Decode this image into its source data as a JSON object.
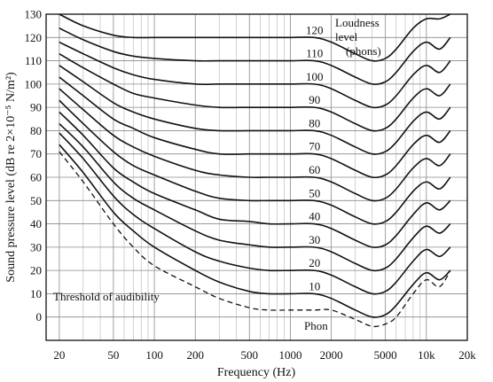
{
  "chart_data": {
    "type": "line",
    "xlabel": "Frequency (Hz)",
    "ylabel": "Sound pressure level (dB re 2×10⁻⁵ N/m²)",
    "xscale": "log",
    "xlim": [
      16,
      20000
    ],
    "ylim": [
      -10,
      130
    ],
    "xticks": [
      20,
      50,
      100,
      200,
      500,
      1000,
      2000,
      5000,
      10000,
      20000
    ],
    "xtick_labels": [
      "20",
      "50",
      "100",
      "200",
      "500",
      "1000",
      "2000",
      "5000",
      "10k",
      "20k"
    ],
    "yticks": [
      0,
      10,
      20,
      30,
      40,
      50,
      60,
      70,
      80,
      90,
      100,
      110,
      120,
      130
    ],
    "grid": true,
    "x": [
      20,
      30,
      50,
      70,
      100,
      200,
      300,
      500,
      700,
      1000,
      1500,
      2000,
      3000,
      4000,
      5000,
      6000,
      8000,
      10000,
      12500,
      15000
    ],
    "series": [
      {
        "name": "10",
        "values": [
          74,
          62,
          45,
          37,
          30,
          20,
          15,
          11,
          10,
          10,
          10,
          8,
          3,
          0,
          1,
          5,
          14,
          19,
          16,
          20
        ]
      },
      {
        "name": "20",
        "values": [
          79,
          68,
          52,
          44,
          38,
          28,
          24,
          21,
          20,
          20,
          20,
          18,
          13,
          10,
          11,
          15,
          24,
          29,
          26,
          30
        ]
      },
      {
        "name": "30",
        "values": [
          83,
          73,
          58,
          51,
          46,
          37,
          33,
          31,
          30,
          30,
          30,
          28,
          23,
          20,
          21,
          25,
          34,
          39,
          36,
          40
        ]
      },
      {
        "name": "40",
        "values": [
          88,
          78,
          64,
          58,
          53,
          46,
          42,
          41,
          40,
          40,
          40,
          38,
          33,
          30,
          31,
          35,
          44,
          49,
          46,
          50
        ]
      },
      {
        "name": "50",
        "values": [
          93,
          83,
          71,
          65,
          61,
          54,
          51,
          50,
          50,
          50,
          50,
          48,
          43,
          40,
          41,
          45,
          54,
          58,
          55,
          60
        ]
      },
      {
        "name": "60",
        "values": [
          98,
          89,
          78,
          73,
          69,
          63,
          61,
          60,
          60,
          60,
          60,
          58,
          53,
          50,
          51,
          55,
          64,
          68,
          65,
          70
        ]
      },
      {
        "name": "70",
        "values": [
          103,
          95,
          85,
          81,
          77,
          72,
          70,
          70,
          70,
          70,
          70,
          68,
          63,
          60,
          61,
          65,
          74,
          78,
          75,
          80
        ]
      },
      {
        "name": "80",
        "values": [
          108,
          101,
          92,
          88,
          85,
          81,
          80,
          80,
          80,
          80,
          80,
          78,
          73,
          70,
          71,
          75,
          84,
          88,
          85,
          90
        ]
      },
      {
        "name": "90",
        "values": [
          113,
          107,
          100,
          96,
          94,
          91,
          90,
          90,
          90,
          90,
          90,
          88,
          83,
          80,
          81,
          85,
          94,
          98,
          95,
          100
        ]
      },
      {
        "name": "100",
        "values": [
          118,
          113,
          107,
          104,
          102,
          100,
          100,
          100,
          100,
          100,
          100,
          98,
          93,
          90,
          91,
          95,
          104,
          108,
          105,
          110
        ]
      },
      {
        "name": "110",
        "values": [
          124,
          119,
          114,
          112,
          111,
          110,
          110,
          110,
          110,
          110,
          110,
          108,
          103,
          100,
          101,
          105,
          114,
          118,
          115,
          120
        ]
      },
      {
        "name": "120",
        "values": [
          130,
          125,
          121,
          120,
          120,
          120,
          120,
          120,
          120,
          120,
          120,
          118,
          113,
          110,
          111,
          115,
          124,
          128,
          128,
          131
        ]
      }
    ],
    "threshold": {
      "name": "Threshold of audibility",
      "values": [
        71,
        58,
        40,
        30,
        22,
        13,
        8,
        4,
        3,
        3,
        3,
        3,
        -1,
        -4,
        -3,
        0,
        10,
        16,
        13,
        20
      ]
    },
    "annotations": {
      "title_line1": "Loudness",
      "title_line2": "level",
      "title_line3": "(phons)",
      "threshold_label": "Threshold of audibility",
      "phon_label": "Phon"
    }
  }
}
